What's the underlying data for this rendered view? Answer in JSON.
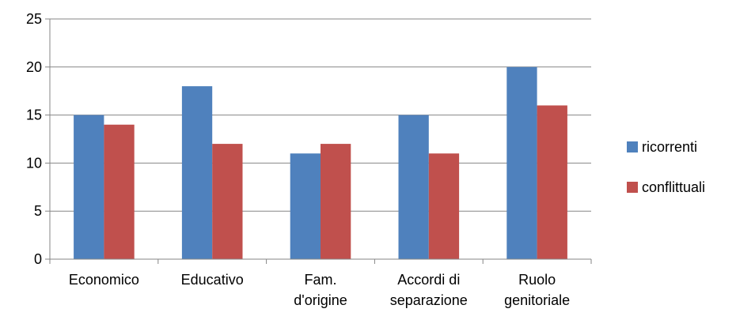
{
  "chart_data": {
    "type": "bar",
    "title": "",
    "xlabel": "",
    "ylabel": "",
    "categories": [
      [
        "Economico"
      ],
      [
        "Educativo"
      ],
      [
        "Fam.",
        "d'origine"
      ],
      [
        "Accordi di",
        "separazione"
      ],
      [
        "Ruolo",
        "genitoriale"
      ]
    ],
    "series": [
      {
        "name": "ricorrenti",
        "color": "#4F81BD",
        "values": [
          15,
          18,
          11,
          15,
          20
        ]
      },
      {
        "name": "conflittuali",
        "color": "#C0504D",
        "values": [
          14,
          12,
          12,
          11,
          16
        ]
      }
    ],
    "ylim": [
      0,
      25
    ],
    "yticks": [
      "0",
      "5",
      "10",
      "15",
      "20",
      "25"
    ],
    "grid": true,
    "legend_position": "right"
  }
}
